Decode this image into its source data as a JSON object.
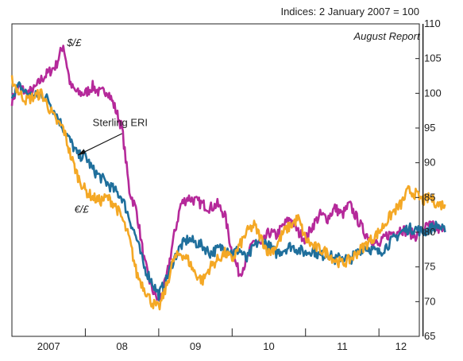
{
  "chart_data": {
    "type": "line",
    "title": "",
    "unit_note": "Indices: 2 January 2007 = 100",
    "xlabel": "",
    "ylabel": "",
    "ylim": [
      65,
      110
    ],
    "yticks": [
      65,
      70,
      75,
      80,
      85,
      90,
      95,
      100,
      105,
      110
    ],
    "xlim": [
      2007.0,
      2012.55
    ],
    "xticks": [
      {
        "label": "2007",
        "pos": 2007.5
      },
      {
        "label": "08",
        "pos": 2008.5
      },
      {
        "label": "09",
        "pos": 2009.5
      },
      {
        "label": "10",
        "pos": 2010.5
      },
      {
        "label": "11",
        "pos": 2011.5
      },
      {
        "label": "12",
        "pos": 2012.3
      }
    ],
    "year_boundaries": [
      2008,
      2009,
      2010,
      2011,
      2012
    ],
    "vline": {
      "x": 2012.6,
      "label": "August Report"
    },
    "grid": false,
    "series": [
      {
        "name": "$/£",
        "color": "#b5299a",
        "x": [
          2007.0,
          2007.1,
          2007.2,
          2007.3,
          2007.4,
          2007.5,
          2007.6,
          2007.7,
          2007.8,
          2007.9,
          2008.0,
          2008.1,
          2008.2,
          2008.3,
          2008.4,
          2008.5,
          2008.6,
          2008.7,
          2008.8,
          2008.9,
          2009.0,
          2009.1,
          2009.2,
          2009.3,
          2009.4,
          2009.5,
          2009.6,
          2009.7,
          2009.8,
          2009.9,
          2010.0,
          2010.1,
          2010.2,
          2010.3,
          2010.4,
          2010.5,
          2010.6,
          2010.7,
          2010.8,
          2010.9,
          2011.0,
          2011.1,
          2011.2,
          2011.3,
          2011.4,
          2011.5,
          2011.6,
          2011.7,
          2011.8,
          2011.9,
          2012.0,
          2012.1,
          2012.2,
          2012.3,
          2012.4,
          2012.5,
          2012.6,
          2012.7,
          2012.8,
          2012.9
        ],
        "values": [
          99,
          101,
          100,
          100.5,
          102,
          103,
          104,
          107,
          101,
          100,
          100,
          101,
          100,
          100.5,
          98,
          95,
          86,
          83,
          76,
          72,
          70,
          73,
          79,
          84,
          85,
          84.5,
          84,
          83.5,
          84,
          82.5,
          77,
          74,
          76,
          79,
          78,
          80,
          79.5,
          81,
          82,
          80,
          79,
          81,
          82.5,
          82,
          83.5,
          82.5,
          84,
          82,
          80,
          79,
          78,
          79.5,
          80,
          80.5,
          80,
          79.5,
          80.5,
          81,
          80.5,
          80
        ]
      },
      {
        "name": "Sterling ERI",
        "color": "#1f6f9c",
        "x": [
          2007.0,
          2007.1,
          2007.2,
          2007.3,
          2007.4,
          2007.5,
          2007.6,
          2007.7,
          2007.8,
          2007.9,
          2008.0,
          2008.1,
          2008.2,
          2008.3,
          2008.4,
          2008.5,
          2008.6,
          2008.7,
          2008.8,
          2008.9,
          2009.0,
          2009.1,
          2009.2,
          2009.3,
          2009.4,
          2009.5,
          2009.6,
          2009.7,
          2009.8,
          2009.9,
          2010.0,
          2010.1,
          2010.2,
          2010.3,
          2010.4,
          2010.5,
          2010.6,
          2010.7,
          2010.8,
          2010.9,
          2011.0,
          2011.1,
          2011.2,
          2011.3,
          2011.4,
          2011.5,
          2011.6,
          2011.7,
          2011.8,
          2011.9,
          2012.0,
          2012.1,
          2012.2,
          2012.3,
          2012.4,
          2012.5,
          2012.6,
          2012.7,
          2012.8,
          2012.9
        ],
        "values": [
          100,
          101,
          100,
          99.5,
          100,
          99,
          97,
          95,
          93,
          91,
          91,
          89,
          88,
          87,
          86,
          85,
          82,
          79,
          75,
          73,
          71,
          73,
          76,
          78,
          79,
          78.5,
          78,
          77,
          77.5,
          78,
          77,
          77.5,
          76,
          78,
          79,
          78,
          77,
          77.5,
          78,
          77.5,
          77,
          77.5,
          76.5,
          77,
          76,
          76.5,
          76,
          77,
          78,
          77.5,
          77,
          78,
          79,
          80,
          80.5,
          80.5,
          80,
          80.5,
          81,
          80
        ]
      },
      {
        "name": "€/£",
        "color": "#f4a825",
        "x": [
          2007.0,
          2007.1,
          2007.2,
          2007.3,
          2007.4,
          2007.5,
          2007.6,
          2007.7,
          2007.8,
          2007.9,
          2008.0,
          2008.1,
          2008.2,
          2008.3,
          2008.4,
          2008.5,
          2008.6,
          2008.7,
          2008.8,
          2008.9,
          2009.0,
          2009.1,
          2009.2,
          2009.3,
          2009.4,
          2009.5,
          2009.6,
          2009.7,
          2009.8,
          2009.9,
          2010.0,
          2010.1,
          2010.2,
          2010.3,
          2010.4,
          2010.5,
          2010.6,
          2010.7,
          2010.8,
          2010.9,
          2011.0,
          2011.1,
          2011.2,
          2011.3,
          2011.4,
          2011.5,
          2011.6,
          2011.7,
          2011.8,
          2011.9,
          2012.0,
          2012.1,
          2012.2,
          2012.3,
          2012.4,
          2012.5,
          2012.6,
          2012.7,
          2012.8,
          2012.9
        ],
        "values": [
          102,
          100,
          99,
          99.5,
          100,
          98,
          96,
          95,
          91,
          88,
          86,
          85,
          84.5,
          85,
          84,
          82,
          79,
          74,
          72,
          70,
          69,
          72,
          76,
          77,
          76,
          74,
          73,
          75,
          76,
          77,
          76,
          78,
          80,
          81,
          79,
          77,
          78,
          80,
          81,
          82,
          79,
          78,
          77.5,
          77,
          76,
          75.5,
          76,
          77,
          78,
          79,
          80,
          81.5,
          83,
          84,
          86,
          85.5,
          84.5,
          85,
          84,
          84
        ]
      }
    ],
    "annotations": [
      {
        "text": "$/£",
        "series": "$/£"
      },
      {
        "text": "Sterling ERI",
        "series": "Sterling ERI"
      },
      {
        "text": "€/£",
        "series": "€/£"
      }
    ]
  }
}
